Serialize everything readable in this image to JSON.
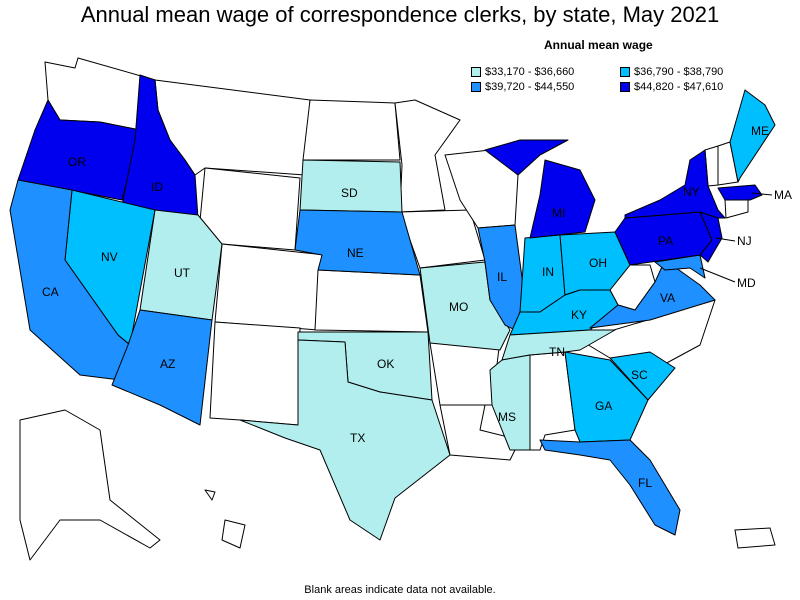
{
  "title": "Annual mean wage of correspondence clerks, by state, May 2021",
  "legend": {
    "title": "Annual mean wage",
    "items": [
      {
        "label": "$33,170 - $36,660",
        "color": "#b2eeee"
      },
      {
        "label": "$36,790 - $38,790",
        "color": "#00bfff"
      },
      {
        "label": "$39,720 - $44,550",
        "color": "#1e90ff"
      },
      {
        "label": "$44,820 - $47,610",
        "color": "#0000ee"
      }
    ]
  },
  "colors": {
    "no_data": "#ffffff",
    "border": "#000000"
  },
  "footnote": "Blank areas indicate data not available.",
  "states": {
    "OR": {
      "label": "OR",
      "tier": 3
    },
    "ID": {
      "label": "ID",
      "tier": 3
    },
    "NV": {
      "label": "NV",
      "tier": 1
    },
    "UT": {
      "label": "UT",
      "tier": 0
    },
    "CA": {
      "label": "CA",
      "tier": 2
    },
    "AZ": {
      "label": "AZ",
      "tier": 2
    },
    "SD": {
      "label": "SD",
      "tier": 0
    },
    "NE": {
      "label": "NE",
      "tier": 2
    },
    "OK": {
      "label": "OK",
      "tier": 0
    },
    "TX": {
      "label": "TX",
      "tier": 0
    },
    "MO": {
      "label": "MO",
      "tier": 0
    },
    "IL": {
      "label": "IL",
      "tier": 2
    },
    "IN": {
      "label": "IN",
      "tier": 1
    },
    "OH": {
      "label": "OH",
      "tier": 1
    },
    "KY": {
      "label": "KY",
      "tier": 1
    },
    "TN": {
      "label": "TN",
      "tier": 0
    },
    "MS": {
      "label": "MS",
      "tier": 0
    },
    "GA": {
      "label": "GA",
      "tier": 1
    },
    "SC": {
      "label": "SC",
      "tier": 1
    },
    "FL": {
      "label": "FL",
      "tier": 2
    },
    "VA": {
      "label": "VA",
      "tier": 2
    },
    "MD": {
      "label": "MD",
      "tier": 2
    },
    "PA": {
      "label": "PA",
      "tier": 3
    },
    "NJ": {
      "label": "NJ",
      "tier": 3
    },
    "NY": {
      "label": "NY",
      "tier": 3
    },
    "MA": {
      "label": "MA",
      "tier": 3
    },
    "ME": {
      "label": "ME",
      "tier": 1
    },
    "MI": {
      "label": "MI",
      "tier": 3
    }
  }
}
